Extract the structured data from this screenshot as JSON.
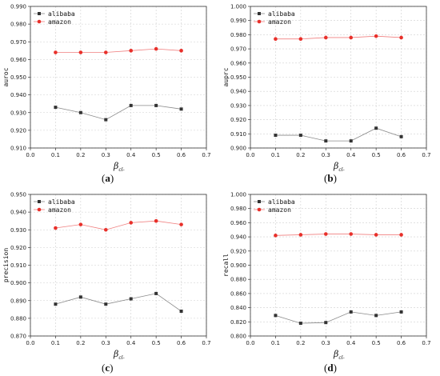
{
  "chart_data": [
    {
      "type": "line",
      "caption_letter": "a",
      "xlabel_symbol": "β",
      "xlabel_sub": "cl-",
      "ylabel": "auroc",
      "xlim": [
        0.0,
        0.7
      ],
      "xticks": [
        "0.0",
        "0.1",
        "0.2",
        "0.3",
        "0.4",
        "0.5",
        "0.6",
        "0.7"
      ],
      "ylim": [
        0.91,
        0.99
      ],
      "yticks": [
        "0.910",
        "0.920",
        "0.930",
        "0.940",
        "0.950",
        "0.960",
        "0.970",
        "0.980",
        "0.990"
      ],
      "grid": true,
      "legend_position": "top-left",
      "x": [
        0.1,
        0.2,
        0.3,
        0.4,
        0.5,
        0.6
      ],
      "series": [
        {
          "name": "alibaba",
          "color": "#333333",
          "marker": "square",
          "values": [
            0.933,
            0.93,
            0.926,
            0.934,
            0.934,
            0.932
          ]
        },
        {
          "name": "amazon",
          "color": "#e8302a",
          "marker": "circle",
          "values": [
            0.964,
            0.964,
            0.964,
            0.965,
            0.966,
            0.965
          ]
        }
      ]
    },
    {
      "type": "line",
      "caption_letter": "b",
      "xlabel_symbol": "β",
      "xlabel_sub": "cl-",
      "ylabel": "auprc",
      "xlim": [
        0.0,
        0.7
      ],
      "xticks": [
        "0.0",
        "0.1",
        "0.2",
        "0.3",
        "0.4",
        "0.5",
        "0.6",
        "0.7"
      ],
      "ylim": [
        0.9,
        1.0
      ],
      "yticks": [
        "0.900",
        "0.910",
        "0.920",
        "0.930",
        "0.940",
        "0.950",
        "0.960",
        "0.970",
        "0.980",
        "0.990",
        "1.000"
      ],
      "grid": true,
      "legend_position": "top-left",
      "x": [
        0.1,
        0.2,
        0.3,
        0.4,
        0.5,
        0.6
      ],
      "series": [
        {
          "name": "alibaba",
          "color": "#333333",
          "marker": "square",
          "values": [
            0.909,
            0.909,
            0.905,
            0.905,
            0.914,
            0.908
          ]
        },
        {
          "name": "amazon",
          "color": "#e8302a",
          "marker": "circle",
          "values": [
            0.977,
            0.977,
            0.978,
            0.978,
            0.979,
            0.978
          ]
        }
      ]
    },
    {
      "type": "line",
      "caption_letter": "c",
      "xlabel_symbol": "β",
      "xlabel_sub": "cl-",
      "ylabel": "precision",
      "xlim": [
        0.0,
        0.7
      ],
      "xticks": [
        "0.0",
        "0.1",
        "0.2",
        "0.3",
        "0.4",
        "0.5",
        "0.6",
        "0.7"
      ],
      "ylim": [
        0.87,
        0.95
      ],
      "yticks": [
        "0.870",
        "0.880",
        "0.890",
        "0.900",
        "0.910",
        "0.920",
        "0.930",
        "0.940",
        "0.950"
      ],
      "grid": true,
      "legend_position": "top-left",
      "x": [
        0.1,
        0.2,
        0.3,
        0.4,
        0.5,
        0.6
      ],
      "series": [
        {
          "name": "alibaba",
          "color": "#333333",
          "marker": "square",
          "values": [
            0.888,
            0.892,
            0.888,
            0.891,
            0.894,
            0.884
          ]
        },
        {
          "name": "amazon",
          "color": "#e8302a",
          "marker": "circle",
          "values": [
            0.931,
            0.933,
            0.93,
            0.934,
            0.935,
            0.933
          ]
        }
      ]
    },
    {
      "type": "line",
      "caption_letter": "d",
      "xlabel_symbol": "β",
      "xlabel_sub": "cl-",
      "ylabel": "recall",
      "xlim": [
        0.0,
        0.7
      ],
      "xticks": [
        "0.0",
        "0.1",
        "0.2",
        "0.3",
        "0.4",
        "0.5",
        "0.6",
        "0.7"
      ],
      "ylim": [
        0.8,
        1.0
      ],
      "yticks": [
        "0.800",
        "0.820",
        "0.840",
        "0.860",
        "0.880",
        "0.900",
        "0.920",
        "0.940",
        "0.960",
        "0.980",
        "1.000"
      ],
      "grid": true,
      "legend_position": "top-left",
      "x": [
        0.1,
        0.2,
        0.3,
        0.4,
        0.5,
        0.6
      ],
      "series": [
        {
          "name": "alibaba",
          "color": "#333333",
          "marker": "square",
          "values": [
            0.829,
            0.818,
            0.819,
            0.834,
            0.829,
            0.834
          ]
        },
        {
          "name": "amazon",
          "color": "#e8302a",
          "marker": "circle",
          "values": [
            0.942,
            0.943,
            0.944,
            0.944,
            0.943,
            0.943
          ]
        }
      ]
    }
  ]
}
